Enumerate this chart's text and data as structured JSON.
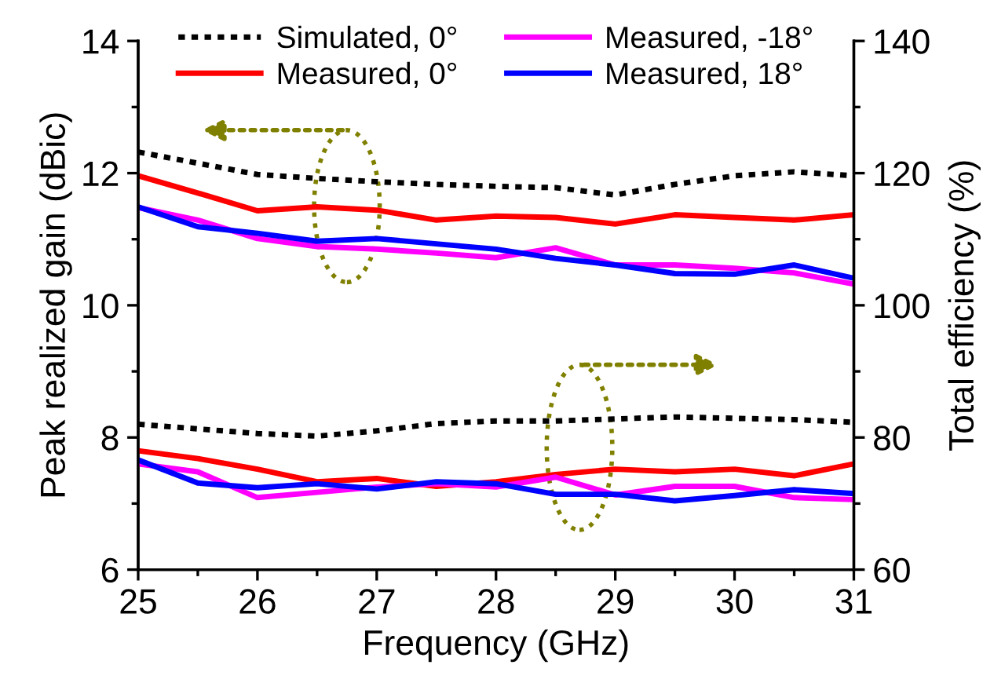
{
  "chart_data": {
    "type": "line",
    "xlabel": "Frequency (GHz)",
    "ylabel": "Peak realized gain (dBic)",
    "y2label": "Total efficiency (%)",
    "x": [
      25,
      25.5,
      26,
      26.5,
      27,
      27.5,
      28,
      28.5,
      29,
      29.5,
      30,
      30.5,
      31
    ],
    "xlim": [
      25,
      31
    ],
    "xticks": [
      25,
      {
        "value": 25.5,
        "label": null
      },
      26,
      {
        "value": 26.5,
        "label": null
      },
      27,
      {
        "value": 27.5,
        "label": null
      },
      28,
      {
        "value": 28.5,
        "label": null
      },
      29,
      {
        "value": 29.5,
        "label": null
      },
      30,
      {
        "value": 30.5,
        "label": null
      },
      31
    ],
    "ylim": [
      6,
      14
    ],
    "yticks": [
      6,
      {
        "value": 7,
        "label": null
      },
      8,
      {
        "value": 9,
        "label": null
      },
      10,
      {
        "value": 11,
        "label": null
      },
      12,
      {
        "value": 13,
        "label": null
      },
      14
    ],
    "y2lim": [
      60,
      140
    ],
    "y2ticks": [
      60,
      {
        "value": 70,
        "label": null
      },
      80,
      {
        "value": 90,
        "label": null
      },
      100,
      {
        "value": 110,
        "label": null
      },
      120,
      {
        "value": 130,
        "label": null
      },
      140
    ],
    "grid": false,
    "legend": "top",
    "marker": "none",
    "series": [
      {
        "name": "Simulated, 0°",
        "color": "#000000",
        "line_style": "dotted",
        "values": [
          12.32,
          12.15,
          11.98,
          11.92,
          11.87,
          11.83,
          11.8,
          11.78,
          11.67,
          11.83,
          11.96,
          12.02,
          11.96
        ]
      },
      {
        "name": "Measured, 0°",
        "color": "#ff0000",
        "line_style": "solid",
        "values": [
          11.96,
          11.7,
          11.43,
          11.49,
          11.44,
          11.29,
          11.35,
          11.33,
          11.23,
          11.37,
          11.33,
          11.29,
          11.37
        ]
      },
      {
        "name": "Measured, -18°",
        "color": "#ff00ff",
        "line_style": "solid",
        "values": [
          11.48,
          11.29,
          11.01,
          10.89,
          10.85,
          10.79,
          10.72,
          10.87,
          10.61,
          10.61,
          10.56,
          10.49,
          10.32
        ]
      },
      {
        "name": "Measured, 18°",
        "color": "#0000ff",
        "line_style": "solid",
        "values": [
          11.49,
          11.19,
          11.09,
          10.97,
          11.01,
          10.93,
          10.85,
          10.71,
          10.61,
          10.48,
          10.47,
          10.61,
          10.41
        ]
      },
      {
        "color": "#000000",
        "line_style": "dotted",
        "axis": "y2",
        "values": [
          82.0,
          81.3,
          80.6,
          80.2,
          81.0,
          82.1,
          82.5,
          82.5,
          82.8,
          83.1,
          82.9,
          82.7,
          82.3
        ]
      },
      {
        "color": "#ff0000",
        "line_style": "solid",
        "axis": "y2",
        "values": [
          78.0,
          76.8,
          75.2,
          73.3,
          73.8,
          72.6,
          73.3,
          74.4,
          75.2,
          74.8,
          75.2,
          74.2,
          76.0
        ]
      },
      {
        "color": "#ff00ff",
        "line_style": "solid",
        "axis": "y2",
        "values": [
          76.0,
          74.8,
          70.9,
          71.7,
          72.5,
          73.0,
          72.5,
          74.0,
          71.3,
          72.6,
          72.6,
          70.9,
          70.6
        ]
      },
      {
        "color": "#0000ff",
        "line_style": "solid",
        "axis": "y2",
        "values": [
          76.6,
          73.1,
          72.4,
          73.0,
          72.2,
          73.3,
          73.0,
          71.4,
          71.4,
          70.4,
          71.2,
          72.1,
          71.5
        ]
      }
    ]
  }
}
